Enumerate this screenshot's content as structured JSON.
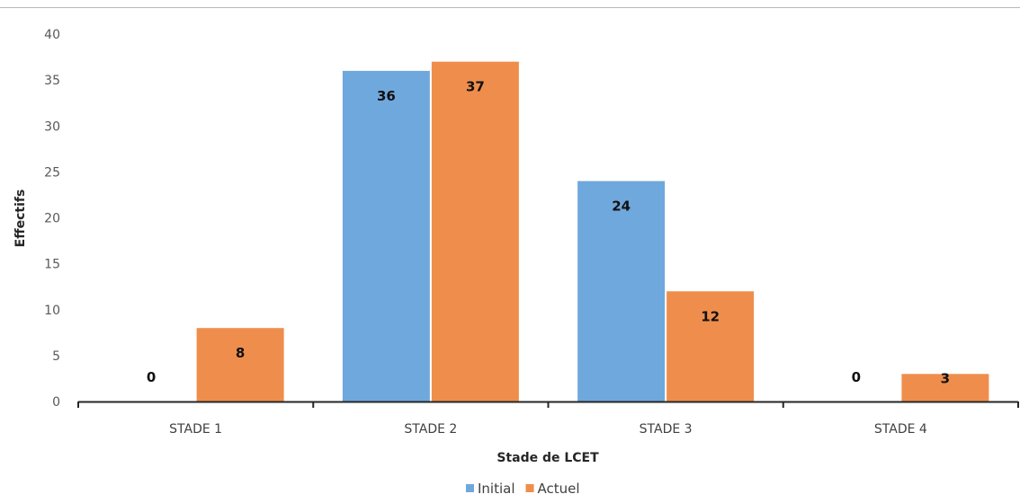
{
  "chart_data": {
    "type": "bar",
    "title": "",
    "xlabel": "Stade de LCET",
    "ylabel": "Effectifs",
    "categories": [
      "STADE 1",
      "STADE 2",
      "STADE 3",
      "STADE 4"
    ],
    "series": [
      {
        "name": "Initial",
        "values": [
          0,
          36,
          24,
          0
        ],
        "color": "#6fa8dc"
      },
      {
        "name": "Actuel",
        "values": [
          8,
          37,
          12,
          3
        ],
        "color": "#ef8e4c"
      }
    ],
    "ylim": [
      0,
      40
    ],
    "yticks": [
      0,
      5,
      10,
      15,
      20,
      25,
      30,
      35,
      40
    ],
    "grid": false,
    "legend": "bottom-center",
    "data_labels": true
  }
}
